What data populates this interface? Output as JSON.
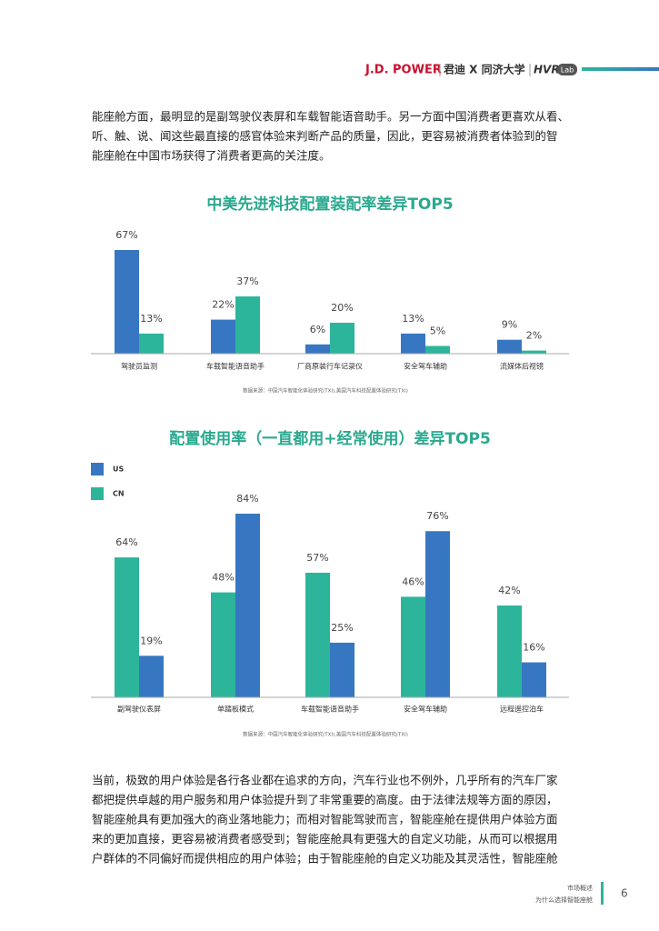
{
  "header": {
    "brand": "J.D. POWER",
    "partners": "君迪 X 同济大学",
    "hvr": "HVR",
    "lab": "Lab"
  },
  "paragraphs": [
    [
      "能座舱方面，最明显的是副驾驶仪表屏和车载智能语音助手。另一方面中国消费者更喜欢从看、",
      "听、触、说、闻这些最直接的感官体验来判断产品的质量，因此，更容易被消费者体验到的智",
      "能座舱在中国市场获得了消费者更高的关注度。"
    ],
    [
      "当前，极致的用户体验是各行各业都在追求的方向，汽车行业也不例外，几乎所有的汽车厂家",
      "都把提供卓越的用户服务和用户体验提升到了非常重要的高度。由于法律法规等方面的原因，",
      "智能座舱具有更加强大的商业落地能力；而相对智能驾驶而言，智能座舱在提供用户体验方面",
      "来的更加直接，更容易被消费者感受到；智能座舱具有更强大的自定义功能，从而可以根据用",
      "户群体的不同偏好而提供相应的用户体验；由于智能座舱的自定义功能及其灵活性，智能座舱"
    ]
  ],
  "chart_data": [
    {
      "type": "bar",
      "title": "中美先进科技配置装配率差异TOP5",
      "categories": [
        "驾驶员监测",
        "车载智能语音助手",
        "厂商原装行车记录仪",
        "安全驾车辅助",
        "流媒体后视镜"
      ],
      "series": [
        {
          "color": "#3777c1",
          "values": [
            67,
            22,
            6,
            13,
            9
          ],
          "value_labels": [
            "67%",
            "22%",
            "6%",
            "13%",
            "9%"
          ]
        },
        {
          "color": "#2db59b",
          "values": [
            13,
            37,
            20,
            5,
            2
          ],
          "value_labels": [
            "13%",
            "37%",
            "20%",
            "5%",
            "2%"
          ]
        }
      ],
      "source": "数据来源：中国汽车智能化体验研究(TXI),美国汽车科技配置体验研究(TXI)"
    },
    {
      "type": "bar",
      "title": "配置使用率（一直都用+经常使用）差异TOP5",
      "categories": [
        "副驾驶仪表屏",
        "单踏板模式",
        "车载智能语音助手",
        "安全驾车辅助",
        "远程遥控泊车"
      ],
      "series": [
        {
          "name": "US",
          "color": "#3777c1",
          "values": [
            19,
            84,
            25,
            76,
            16
          ],
          "value_labels": [
            "19%",
            "84%",
            "25%",
            "76%",
            "16%"
          ]
        },
        {
          "name": "CN",
          "color": "#2db59b",
          "values": [
            64,
            48,
            57,
            46,
            42
          ],
          "value_labels": [
            "64%",
            "48%",
            "57%",
            "46%",
            "42%"
          ]
        }
      ],
      "legend": "top-left",
      "source": "数据来源：中国汽车智能化体验研究(TXI),美国汽车科技配置体验研究(TXI)"
    }
  ],
  "footer": {
    "section": "市场概述",
    "subsection": "为什么选择智能座舱",
    "page": "6"
  }
}
